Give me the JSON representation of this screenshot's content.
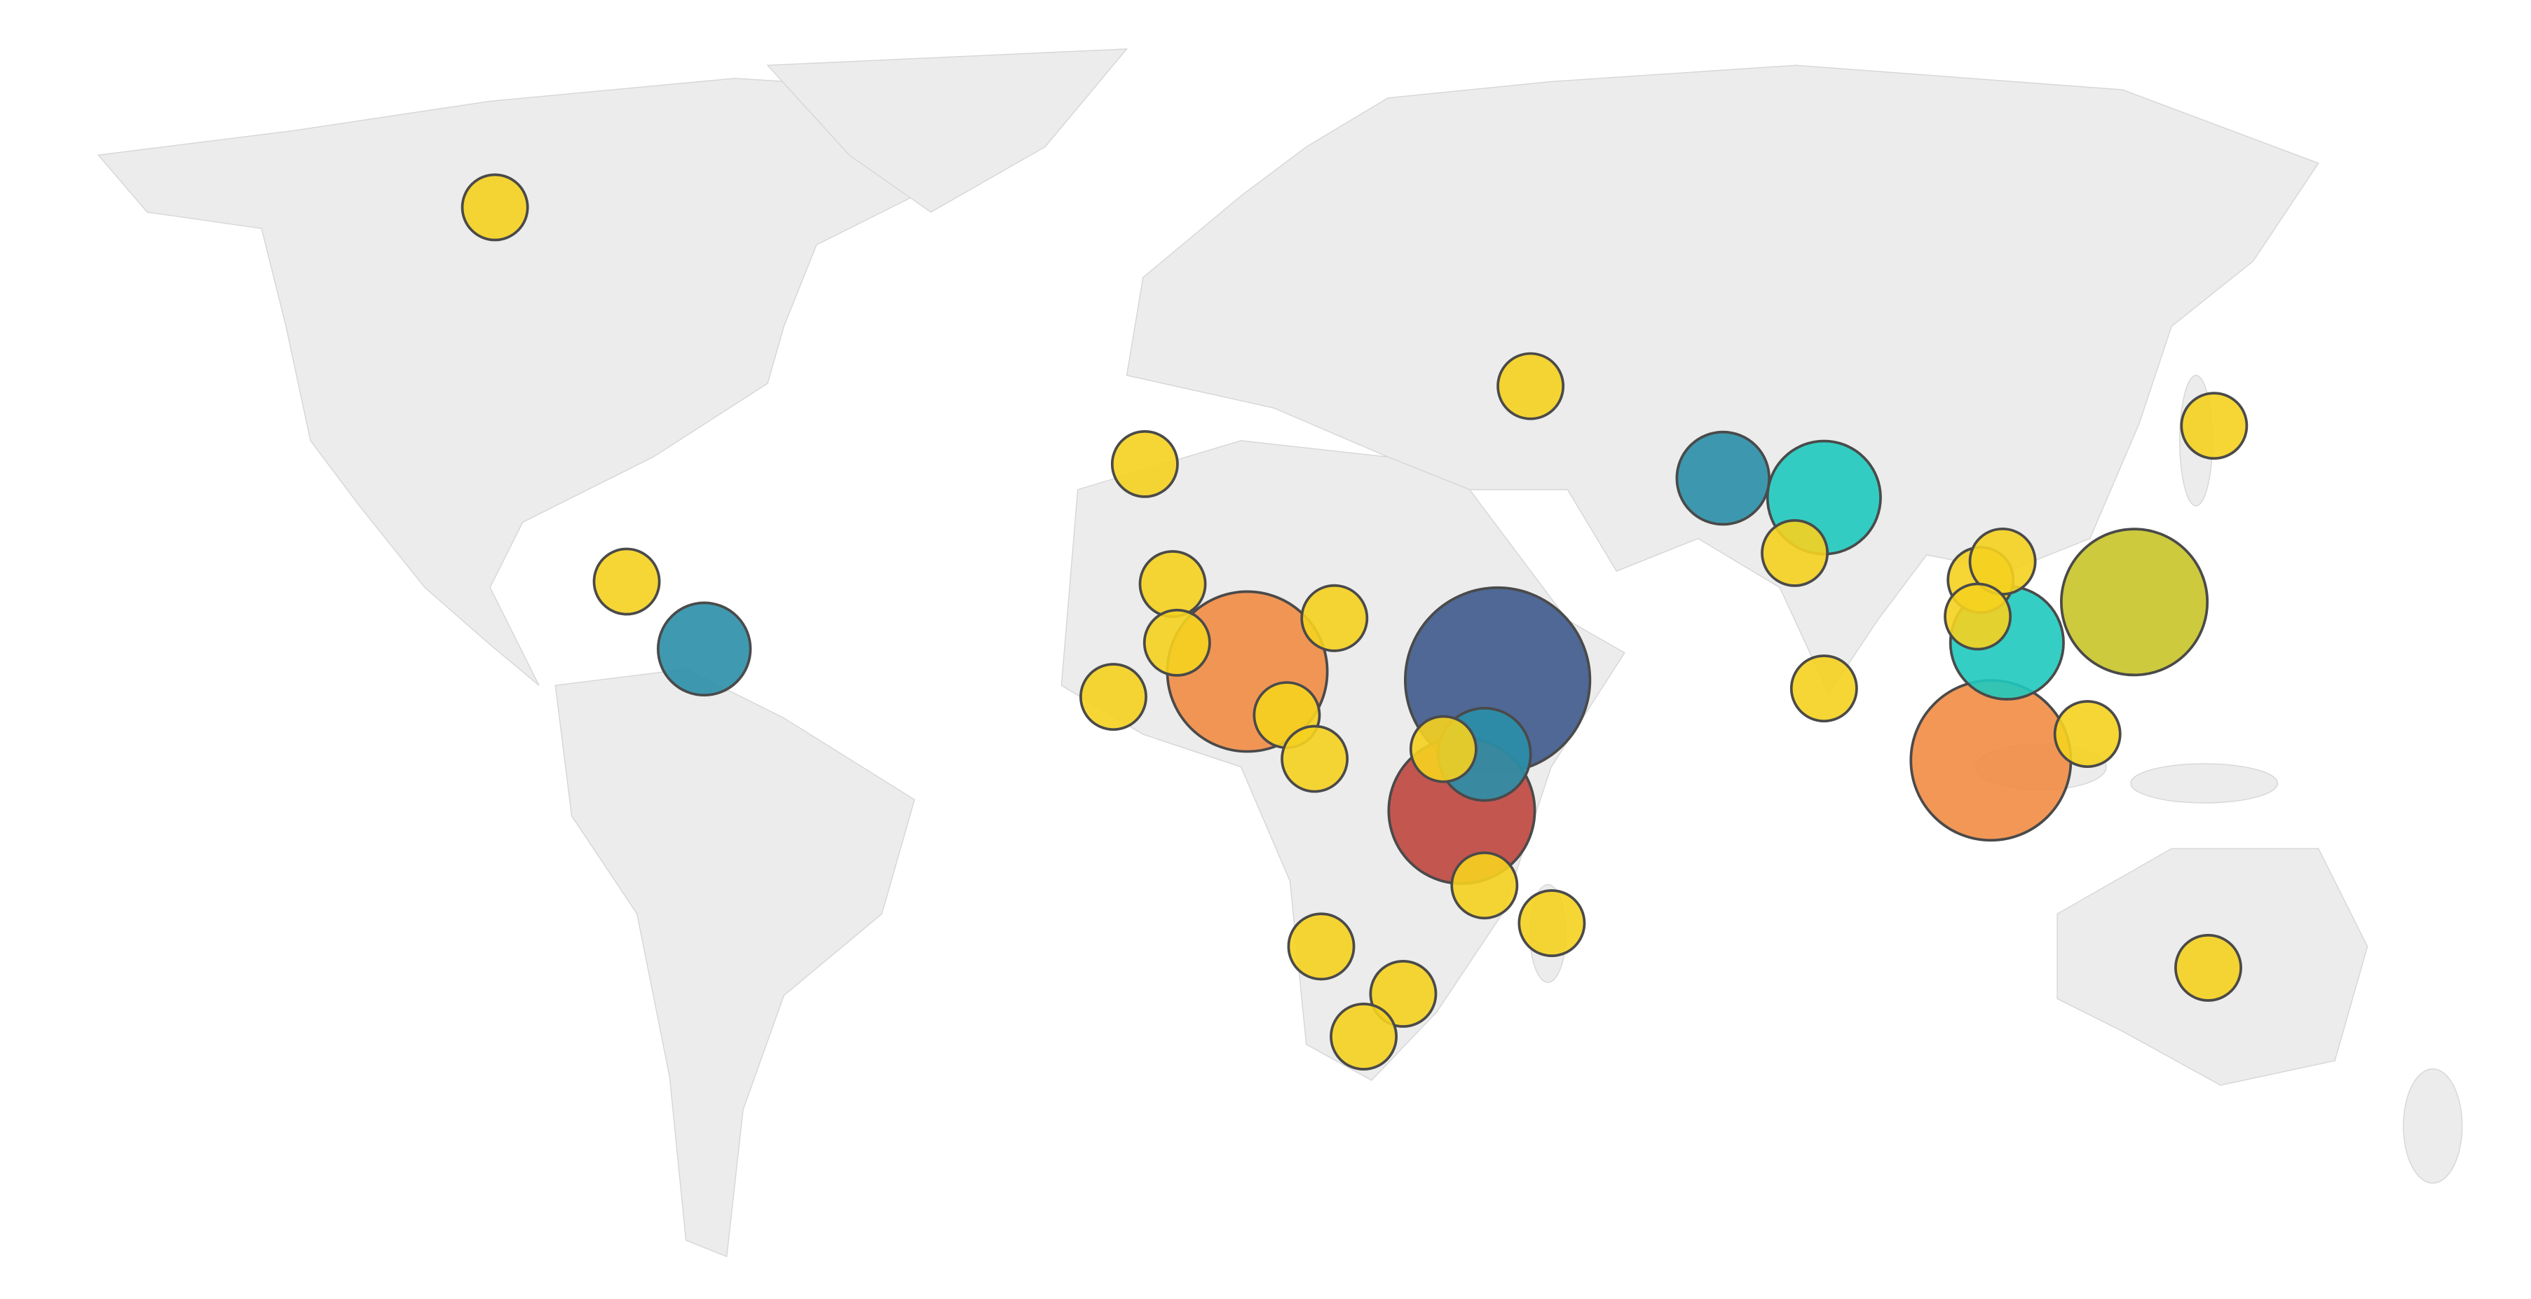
{
  "chart_data": {
    "type": "bubble_map",
    "bubbles": [
      {
        "lon": 37.0,
        "lat": 12.4,
        "size": 8,
        "color": "#3e5a8c"
      },
      {
        "lon": 104.4,
        "lat": 1.8,
        "size": 6,
        "color": "#f28c45"
      },
      {
        "lon": 2.8,
        "lat": 13.5,
        "size": 6,
        "color": "#f28c45"
      },
      {
        "lon": 32.1,
        "lat": -4.9,
        "size": 5,
        "color": "#c0463f"
      },
      {
        "lon": 124.0,
        "lat": 22.3,
        "size": 5,
        "color": "#c8c428"
      },
      {
        "lon": 81.6,
        "lat": 34.5,
        "size": 3,
        "color": "#1fc9be"
      },
      {
        "lon": 106.6,
        "lat": 17.2,
        "size": 3,
        "color": "#1fc9be"
      },
      {
        "lon": 67.8,
        "lat": 36.6,
        "size": 2,
        "color": "#2a8fa8"
      },
      {
        "lon": -71.4,
        "lat": 16.4,
        "size": 2,
        "color": "#2a8fa8"
      },
      {
        "lon": 35.2,
        "lat": 2.6,
        "size": 2,
        "color": "#2a8fa8"
      },
      {
        "lon": -100.0,
        "lat": 60.0,
        "size": 1,
        "color": "#f5d21f"
      },
      {
        "lon": -82.0,
        "lat": 24.8,
        "size": 1,
        "color": "#f5d21f"
      },
      {
        "lon": -11.2,
        "lat": 38.1,
        "size": 1,
        "color": "#f5d21f"
      },
      {
        "lon": -7.4,
        "lat": 24.5,
        "size": 1,
        "color": "#f5d21f"
      },
      {
        "lon": -6.8,
        "lat": 17.2,
        "size": 1,
        "color": "#f5d21f"
      },
      {
        "lon": -15.5,
        "lat": 10.2,
        "size": 1,
        "color": "#f5d21f"
      },
      {
        "lon": 14.7,
        "lat": 20.3,
        "size": 1,
        "color": "#f5d21f"
      },
      {
        "lon": 8.2,
        "lat": 7.8,
        "size": 1,
        "color": "#f5d21f"
      },
      {
        "lon": 12.0,
        "lat": 2.0,
        "size": 1,
        "color": "#f5d21f"
      },
      {
        "lon": 29.6,
        "lat": 3.3,
        "size": 1,
        "color": "#f5d21f"
      },
      {
        "lon": 35.2,
        "lat": -14.7,
        "size": 1,
        "color": "#f5d21f"
      },
      {
        "lon": 44.4,
        "lat": -19.5,
        "size": 1,
        "color": "#f5d21f"
      },
      {
        "lon": 12.9,
        "lat": -22.4,
        "size": 1,
        "color": "#f5d21f"
      },
      {
        "lon": 24.1,
        "lat": -28.1,
        "size": 1,
        "color": "#f5d21f"
      },
      {
        "lon": 18.7,
        "lat": -33.0,
        "size": 1,
        "color": "#f5d21f"
      },
      {
        "lon": 41.5,
        "lat": 45.8,
        "size": 1,
        "color": "#f5d21f"
      },
      {
        "lon": 77.6,
        "lat": 28.2,
        "size": 1,
        "color": "#f5d21f"
      },
      {
        "lon": 81.6,
        "lat": 11.3,
        "size": 1,
        "color": "#f5d21f"
      },
      {
        "lon": 103.0,
        "lat": 25.0,
        "size": 1,
        "color": "#f5d21f"
      },
      {
        "lon": 106.0,
        "lat": 27.2,
        "size": 1,
        "color": "#f5d21f"
      },
      {
        "lon": 102.6,
        "lat": 20.5,
        "size": 1,
        "color": "#f5d21f"
      },
      {
        "lon": 117.6,
        "lat": 5.3,
        "size": 1,
        "color": "#f5d21f"
      },
      {
        "lon": 134.9,
        "lat": 42.0,
        "size": 1,
        "color": "#f5d21f"
      },
      {
        "lon": 134.1,
        "lat": -25.0,
        "size": 1,
        "color": "#f5d21f"
      }
    ]
  }
}
